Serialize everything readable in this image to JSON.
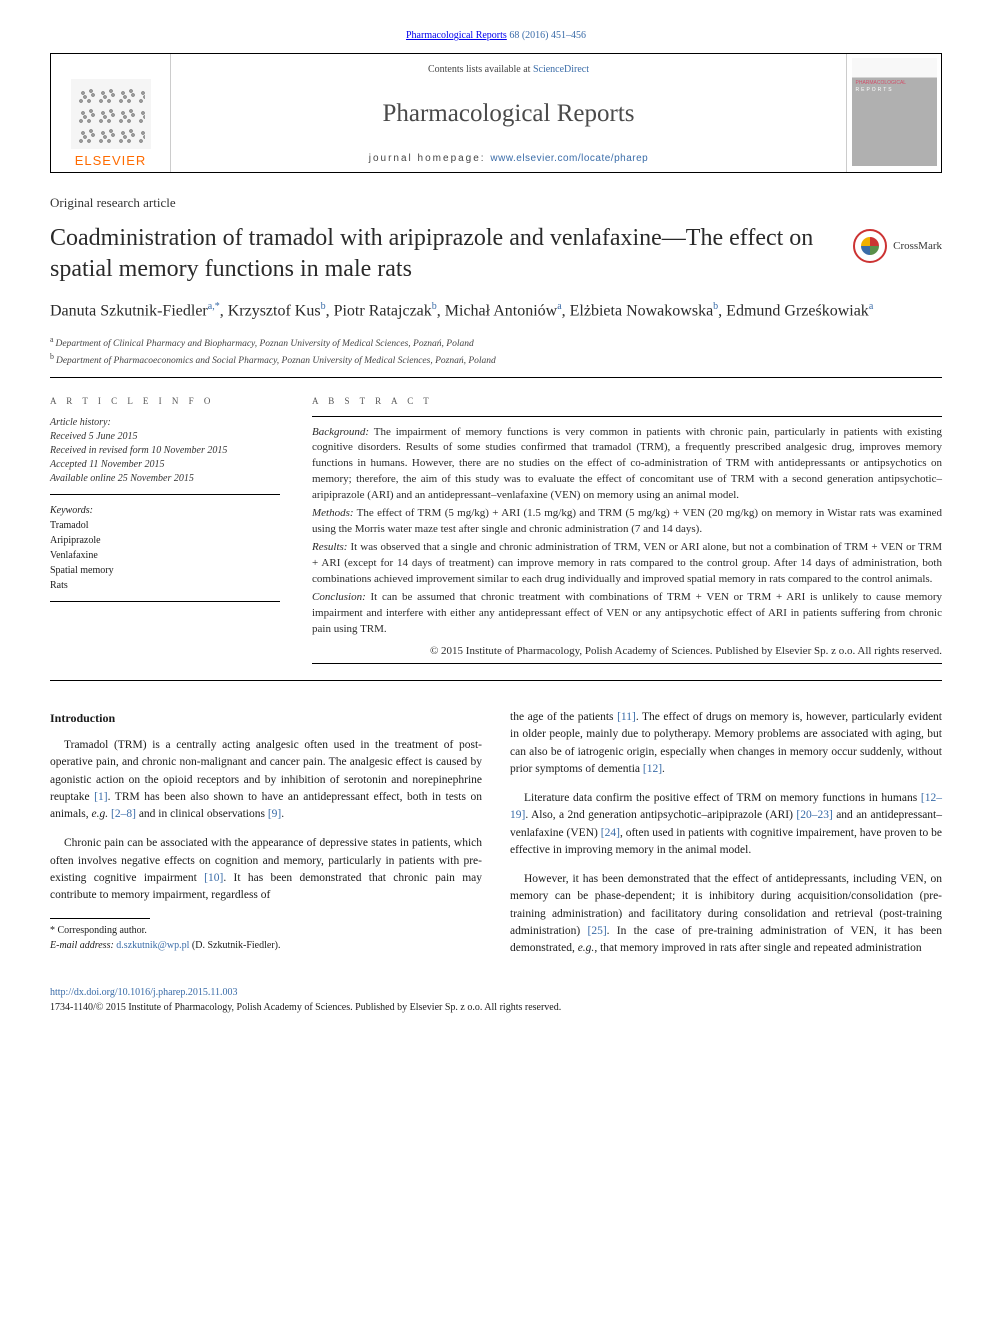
{
  "citation": {
    "journal_link": "Pharmacological Reports",
    "vol_pages": " 68 (2016) 451–456"
  },
  "header": {
    "publisher": "ELSEVIER",
    "contents_prefix": "Contents lists available at ",
    "contents_link": "ScienceDirect",
    "journal": "Pharmacological Reports",
    "homepage_label": "journal homepage: ",
    "homepage_url": "www.elsevier.com/locate/pharep"
  },
  "article_type": "Original research article",
  "title": "Coadministration of tramadol with aripiprazole and venlafaxine—The effect on spatial memory functions in male rats",
  "crossmark_label": "CrossMark",
  "authors_html": "Danuta Szkutnik-Fiedler<sup>a,*</sup>, Krzysztof Kus<sup>b</sup>, Piotr Ratajczak<sup>b</sup>, Michał Antoniów<sup>a</sup>, Elżbieta Nowakowska<sup>b</sup>, Edmund Grześkowiak<sup>a</sup>",
  "affiliations": [
    {
      "sup": "a",
      "text": "Department of Clinical Pharmacy and Biopharmacy, Poznan University of Medical Sciences, Poznań, Poland"
    },
    {
      "sup": "b",
      "text": "Department of Pharmacoeconomics and Social Pharmacy, Poznan University of Medical Sciences, Poznań, Poland"
    }
  ],
  "info_heading": "A R T I C L E   I N F O",
  "history_label": "Article history:",
  "history": [
    "Received 5 June 2015",
    "Received in revised form 10 November 2015",
    "Accepted 11 November 2015",
    "Available online 25 November 2015"
  ],
  "keywords_label": "Keywords:",
  "keywords": [
    "Tramadol",
    "Aripiprazole",
    "Venlafaxine",
    "Spatial memory",
    "Rats"
  ],
  "abstract_heading": "A B S T R A C T",
  "abstract": [
    {
      "label": "Background:",
      "text": " The impairment of memory functions is very common in patients with chronic pain, particularly in patients with existing cognitive disorders. Results of some studies confirmed that tramadol (TRM), a frequently prescribed analgesic drug, improves memory functions in humans. However, there are no studies on the effect of co-administration of TRM with antidepressants or antipsychotics on memory; therefore, the aim of this study was to evaluate the effect of concomitant use of TRM with a second generation antipsychotic–aripiprazole (ARI) and an antidepressant–venlafaxine (VEN) on memory using an animal model."
    },
    {
      "label": "Methods:",
      "text": " The effect of TRM (5 mg/kg) + ARI (1.5 mg/kg) and TRM (5 mg/kg) + VEN (20 mg/kg) on memory in Wistar rats was examined using the Morris water maze test after single and chronic administration (7 and 14 days)."
    },
    {
      "label": "Results:",
      "text": " It was observed that a single and chronic administration of TRM, VEN or ARI alone, but not a combination of TRM + VEN or TRM + ARI (except for 14 days of treatment) can improve memory in rats compared to the control group. After 14 days of administration, both combinations achieved improvement similar to each drug individually and improved spatial memory in rats compared to the control animals."
    },
    {
      "label": "Conclusion:",
      "text": " It can be assumed that chronic treatment with combinations of TRM + VEN or TRM + ARI is unlikely to cause memory impairment and interfere with either any antidepressant effect of VEN or any antipsychotic effect of ARI in patients suffering from chronic pain using TRM."
    }
  ],
  "copyright": "© 2015 Institute of Pharmacology, Polish Academy of Sciences. Published by Elsevier Sp. z o.o. All rights reserved.",
  "body": {
    "intro_heading": "Introduction",
    "left_paras": [
      "Tramadol (TRM) is a centrally acting analgesic often used in the treatment of post-operative pain, and chronic non-malignant and cancer pain. The analgesic effect is caused by agonistic action on the opioid receptors and by inhibition of serotonin and norepinephrine reuptake <a href='#'>[1]</a>. TRM has been also shown to have an antidepressant effect, both in tests on animals, <em>e.g.</em> <a href='#'>[2–8]</a> and in clinical observations <a href='#'>[9]</a>.",
      "Chronic pain can be associated with the appearance of depressive states in patients, which often involves negative effects on cognition and memory, particularly in patients with pre-existing cognitive impairment <a href='#'>[10]</a>. It has been demonstrated that chronic pain may contribute to memory impairment, regardless of"
    ],
    "right_paras": [
      "the age of the patients <a href='#'>[11]</a>. The effect of drugs on memory is, however, particularly evident in older people, mainly due to polytherapy. Memory problems are associated with aging, but can also be of iatrogenic origin, especially when changes in memory occur suddenly, without prior symptoms of dementia <a href='#'>[12]</a>.",
      "Literature data confirm the positive effect of TRM on memory functions in humans <a href='#'>[12–19]</a>. Also, a 2nd generation antipsychotic–aripiprazole (ARI) <a href='#'>[20–23]</a> and an antidepressant–venlafaxine (VEN) <a href='#'>[24]</a>, often used in patients with cognitive impairement, have proven to be effective in improving memory in the animal model.",
      "However, it has been demonstrated that the effect of antidepressants, including VEN, on memory can be phase-dependent; it is inhibitory during acquisition/consolidation (pre-training administration) and facilitatory during consolidation and retrieval (post-training administration) <a href='#'>[25]</a>. In the case of pre-training administration of VEN, it has been demonstrated, <em>e.g.</em>, that memory improved in rats after single and repeated administration"
    ]
  },
  "footnote": {
    "corresponding": "* Corresponding author.",
    "email_label": "E-mail address: ",
    "email": "d.szkutnik@wp.pl",
    "email_attrib": " (D. Szkutnik-Fiedler)."
  },
  "footer": {
    "doi": "http://dx.doi.org/10.1016/j.pharep.2015.11.003",
    "issn_line": "1734-1140/© 2015 Institute of Pharmacology, Polish Academy of Sciences. Published by Elsevier Sp. z o.o. All rights reserved."
  },
  "colors": {
    "link": "#3a6ca8",
    "elsevier_orange": "#ff6b00",
    "text": "#1a1a1a"
  }
}
